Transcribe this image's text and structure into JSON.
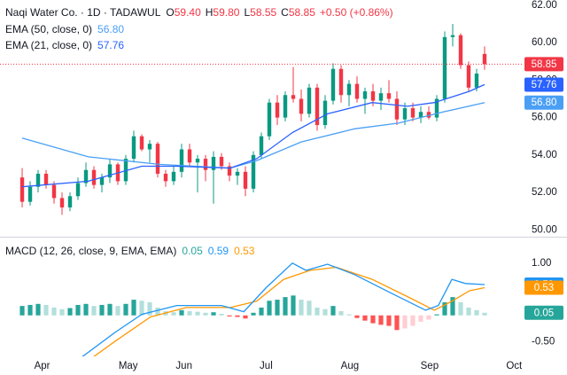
{
  "chart_data": [
    {
      "type": "candlestick",
      "title": "Naqi Water Co. · 1D · TADAWUL",
      "ohlc_labels": [
        {
          "key": "O",
          "value": "59.40"
        },
        {
          "key": "H",
          "value": "59.80"
        },
        {
          "key": "L",
          "value": "58.55"
        },
        {
          "key": "C",
          "value": "58.85"
        }
      ],
      "change": "+0.50 (+0.86%)",
      "x": [
        0,
        1,
        2,
        3,
        4,
        5,
        6,
        7,
        8,
        9,
        10,
        11,
        12,
        13,
        14,
        15,
        16,
        17,
        18,
        19,
        20,
        21,
        22,
        23,
        24,
        25,
        26,
        27,
        28,
        29,
        30,
        31,
        32,
        33,
        34,
        35,
        36,
        37,
        38,
        39,
        40,
        41,
        42,
        43,
        44,
        45,
        46,
        47,
        48,
        49,
        50,
        51,
        52,
        53,
        54,
        55,
        56,
        57,
        58
      ],
      "open": [
        52.8,
        51.5,
        52.3,
        53.0,
        52.4,
        51.7,
        51.2,
        51.8,
        52.5,
        53.2,
        52.4,
        52.8,
        53.5,
        52.6,
        53.8,
        55.0,
        54.3,
        54.6,
        53.0,
        52.6,
        53.1,
        54.3,
        53.6,
        53.8,
        53.2,
        53.9,
        53.4,
        52.9,
        53.1,
        52.2,
        54.0,
        55.0,
        56.8,
        56.0,
        57.2,
        57.0,
        56.2,
        57.6,
        55.6,
        56.9,
        58.6,
        57.2,
        57.8,
        57.0,
        57.4,
        56.9,
        57.3,
        57.0,
        55.9,
        56.5,
        56.0,
        56.3,
        56.0,
        57.0,
        60.3,
        60.4,
        58.8,
        57.6,
        59.4
      ],
      "high": [
        53.3,
        52.6,
        53.2,
        53.2,
        52.6,
        52.0,
        52.0,
        52.8,
        53.6,
        53.4,
        53.0,
        53.8,
        53.6,
        54.0,
        55.3,
        55.1,
        54.8,
        54.7,
        53.2,
        53.4,
        54.6,
        54.6,
        54.0,
        54.0,
        54.2,
        54.1,
        53.6,
        53.3,
        53.4,
        54.2,
        55.2,
        57.0,
        57.2,
        57.4,
        58.7,
        57.5,
        57.8,
        57.8,
        57.2,
        58.9,
        58.8,
        58.0,
        58.2,
        57.6,
        57.8,
        57.6,
        58.0,
        57.4,
        56.8,
        56.8,
        56.6,
        56.6,
        57.2,
        60.6,
        61.0,
        60.5,
        59.0,
        58.6,
        59.8
      ],
      "low": [
        51.2,
        51.3,
        52.0,
        52.2,
        51.4,
        50.8,
        51.0,
        51.6,
        52.3,
        52.2,
        52.0,
        52.5,
        52.4,
        52.4,
        53.6,
        54.2,
        53.6,
        52.8,
        52.3,
        52.4,
        52.8,
        53.4,
        52.0,
        52.6,
        51.4,
        53.2,
        52.6,
        52.4,
        51.8,
        52.0,
        53.8,
        54.8,
        55.6,
        55.8,
        56.8,
        55.8,
        56.0,
        55.3,
        55.4,
        56.7,
        56.8,
        56.6,
        56.8,
        56.2,
        56.6,
        56.4,
        56.8,
        55.6,
        55.6,
        55.8,
        55.7,
        55.9,
        55.8,
        56.8,
        59.8,
        58.6,
        57.4,
        57.4,
        58.55
      ],
      "close": [
        51.5,
        52.3,
        53.0,
        52.4,
        51.7,
        51.2,
        51.8,
        52.5,
        53.2,
        52.4,
        52.8,
        53.5,
        52.6,
        53.8,
        55.0,
        54.3,
        54.6,
        53.0,
        52.6,
        53.1,
        54.3,
        53.6,
        53.8,
        53.2,
        53.9,
        53.4,
        52.9,
        53.1,
        52.2,
        54.0,
        55.0,
        56.8,
        56.0,
        57.2,
        57.0,
        56.2,
        57.6,
        55.6,
        56.9,
        58.6,
        57.2,
        57.8,
        57.0,
        57.4,
        56.9,
        57.3,
        57.0,
        55.9,
        56.5,
        56.0,
        56.3,
        56.0,
        57.0,
        60.3,
        60.4,
        58.8,
        57.6,
        58.35,
        58.85
      ],
      "close_label": "58.85",
      "up_color": "#089981",
      "down_color": "#f23645",
      "lines": [
        {
          "name": "EMA (50, close, 0)",
          "color": "#4a9ff5",
          "x": [
            0,
            8.3,
            17.2,
            26.1,
            29.4,
            35,
            41.7,
            47.2,
            52.8,
            58
          ],
          "values": [
            54.9,
            53.9,
            53.5,
            53.3,
            53.7,
            54.7,
            55.4,
            55.7,
            56.3,
            56.8
          ],
          "value_label": "56.80"
        },
        {
          "name": "EMA (21, close, 0)",
          "color": "#2962ff",
          "x": [
            0,
            8.3,
            15,
            19.4,
            26.1,
            29.4,
            33.9,
            38.3,
            43.9,
            48.3,
            51.7,
            56.1,
            58
          ],
          "values": [
            52.3,
            52.6,
            53.4,
            53.4,
            53.3,
            53.8,
            55.2,
            56.2,
            56.8,
            56.6,
            56.8,
            57.4,
            57.76
          ],
          "value_label": "57.76"
        }
      ],
      "xlim": [
        -2.78,
        62.78
      ],
      "ylim": [
        49.73,
        62.28
      ],
      "yticks": [
        {
          "value": 50,
          "label": "50.00"
        },
        {
          "value": 52,
          "label": "52.00"
        },
        {
          "value": 54,
          "label": "54.00"
        },
        {
          "value": 56,
          "label": "56.00"
        },
        {
          "value": 58,
          "label": "58.00"
        },
        {
          "value": 60,
          "label": "60.00"
        },
        {
          "value": 62,
          "label": "62.00"
        }
      ]
    },
    {
      "type": "macd",
      "title": "MACD (12, 26, close, 9, EMA, EMA)",
      "histogram": {
        "colors": [
          "#26a69a",
          "#b2dfdb",
          "#ff5252",
          "#ffcdd2"
        ],
        "tag_color": "#26a69a",
        "values": [
          0.18,
          0.2,
          0.22,
          0.2,
          0.15,
          0.12,
          0.14,
          0.2,
          0.22,
          0.18,
          0.2,
          0.22,
          0.18,
          0.22,
          0.3,
          0.28,
          0.25,
          0.15,
          0.08,
          0.06,
          0.1,
          0.08,
          0.07,
          0.05,
          0.06,
          0.03,
          -0.02,
          -0.03,
          -0.06,
          0.05,
          0.15,
          0.28,
          0.3,
          0.35,
          0.38,
          0.3,
          0.28,
          0.15,
          0.12,
          0.18,
          0.08,
          0.02,
          -0.05,
          -0.1,
          -0.15,
          -0.18,
          -0.2,
          -0.28,
          -0.25,
          -0.2,
          -0.12,
          -0.08,
          0.02,
          0.25,
          0.35,
          0.25,
          0.15,
          0.1,
          0.05
        ],
        "value_label": "0.05"
      },
      "macd": {
        "color": "#2196f3",
        "x": [
          7.2,
          11.7,
          15,
          19.4,
          25,
          27.8,
          30.6,
          33.9,
          35.6,
          38.3,
          41.7,
          46.1,
          50.6,
          52.2,
          53.9,
          55.6,
          58
        ],
        "values": [
          -0.83,
          -0.32,
          0.02,
          0.19,
          0.19,
          0.07,
          0.53,
          1.0,
          0.86,
          0.98,
          0.78,
          0.44,
          0.1,
          0.19,
          0.69,
          0.61,
          0.59
        ],
        "value_label": "0.59"
      },
      "signal": {
        "color": "#ff9800",
        "x": [
          7.8,
          11.7,
          16.1,
          20.6,
          26.1,
          29.4,
          32.8,
          36.1,
          39.4,
          43.9,
          48.3,
          51.7,
          53.9,
          56.1,
          58
        ],
        "values": [
          -0.92,
          -0.49,
          -0.03,
          0.15,
          0.15,
          0.27,
          0.69,
          0.86,
          0.92,
          0.69,
          0.36,
          0.1,
          0.27,
          0.47,
          0.53
        ],
        "value_label": "0.53"
      },
      "xlim": [
        -2.78,
        62.78
      ],
      "ylim": [
        -0.75,
        1.42
      ],
      "yticks": [
        {
          "value": -0.5,
          "label": "-0.50"
        },
        {
          "value": 1,
          "label": "1.00"
        }
      ],
      "xticks": [
        {
          "value": 2.5,
          "label": "Apr"
        },
        {
          "value": 13.3,
          "label": "May"
        },
        {
          "value": 20.3,
          "label": "Jun"
        },
        {
          "value": 30.6,
          "label": "Jul"
        },
        {
          "value": 41.1,
          "label": "Aug"
        },
        {
          "value": 51.1,
          "label": "Sep"
        },
        {
          "value": 61.7,
          "label": "Oct"
        }
      ]
    }
  ]
}
